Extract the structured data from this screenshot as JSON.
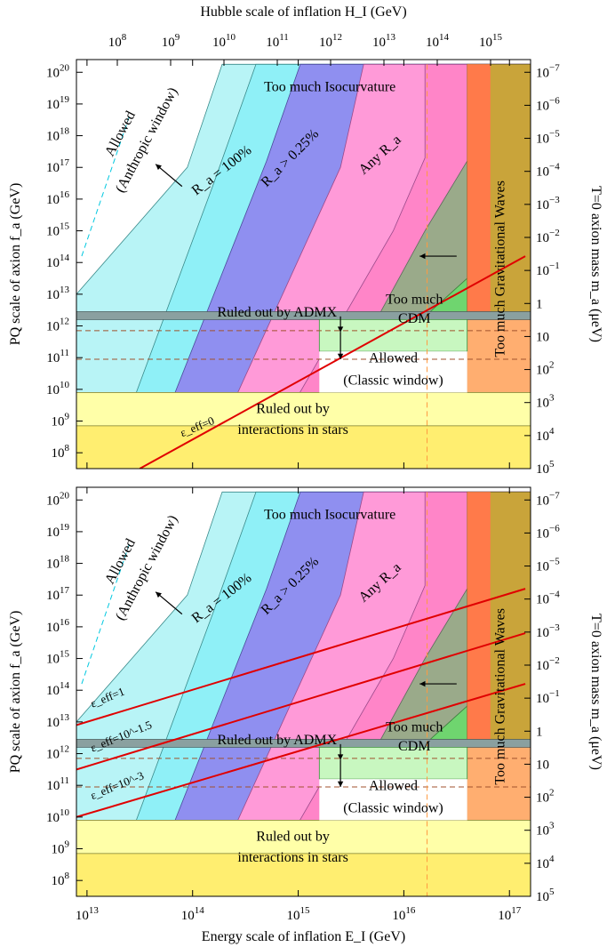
{
  "chart_data": {
    "type": "area",
    "x_axis_bottom": {
      "label": "Energy scale of inflation E_I (GeV)",
      "scale": "log10",
      "range": [
        12.9,
        17.2
      ],
      "ticks": [
        13,
        14,
        15,
        16,
        17
      ]
    },
    "x_axis_top": {
      "label": "Hubble scale of inflation H_I (GeV)",
      "scale": "log10",
      "ticks": [
        8,
        9,
        10,
        11,
        12,
        13,
        14,
        15
      ]
    },
    "y_axis_left": {
      "label": "PQ scale of axion f_a (GeV)",
      "scale": "log10",
      "range": [
        7.5,
        20.4
      ],
      "ticks": [
        8,
        9,
        10,
        11,
        12,
        13,
        14,
        15,
        16,
        17,
        18,
        19,
        20
      ]
    },
    "y_axis_right": {
      "label": "T=0 axion mass m_a (μeV)",
      "ticks": [
        "-7",
        "-6",
        "-5",
        "-4",
        "-3",
        "-2",
        "-1",
        "1",
        "10",
        "10^2",
        "10^3",
        "10^4",
        "10^5"
      ]
    },
    "panels": [
      {
        "labels": {
          "isocurvature": "Too much Isocurvature",
          "ra100": "R_a = 100%",
          "ra025": "R_a > 0.25%",
          "any_ra": "Any R_a",
          "anthropic_1": "Allowed",
          "anthropic_2": "(Anthropic window)",
          "gw": "Too much Gravitational Waves",
          "cdm_1": "Too much",
          "cdm_2": "CDM",
          "admx": "Ruled out by ADMX",
          "classic_1": "Allowed",
          "classic_2": "(Classic window)",
          "stars_1": "Ruled out by",
          "stars_2": "interactions in stars",
          "eps": [
            {
              "label": "ε_eff=0",
              "start": [
                13.5,
                7.5
              ],
              "end": [
                17.15,
                14.2
              ]
            }
          ]
        }
      },
      {
        "labels": {
          "isocurvature": "Too much Isocurvature",
          "ra100": "R_a = 100%",
          "ra025": "R_a > 0.25%",
          "any_ra": "Any R_a",
          "anthropic_1": "Allowed",
          "anthropic_2": "(Anthropic window)",
          "gw": "Too much Gravitational Waves",
          "cdm_1": "Too much",
          "cdm_2": "CDM",
          "admx": "Ruled out by ADMX",
          "classic_1": "Allowed",
          "classic_2": "(Classic window)",
          "stars_1": "Ruled out by",
          "stars_2": "interactions in stars",
          "eps": [
            {
              "label": "ε_eff=1",
              "start": [
                12.9,
                12.9
              ],
              "end": [
                17.15,
                17.2
              ]
            },
            {
              "label": "ε_eff=10^-1.5",
              "start": [
                12.9,
                11.5
              ],
              "end": [
                17.15,
                15.8
              ]
            },
            {
              "label": "ε_eff=10^-3",
              "start": [
                12.9,
                10.0
              ],
              "end": [
                17.15,
                14.2
              ]
            }
          ]
        }
      }
    ]
  }
}
